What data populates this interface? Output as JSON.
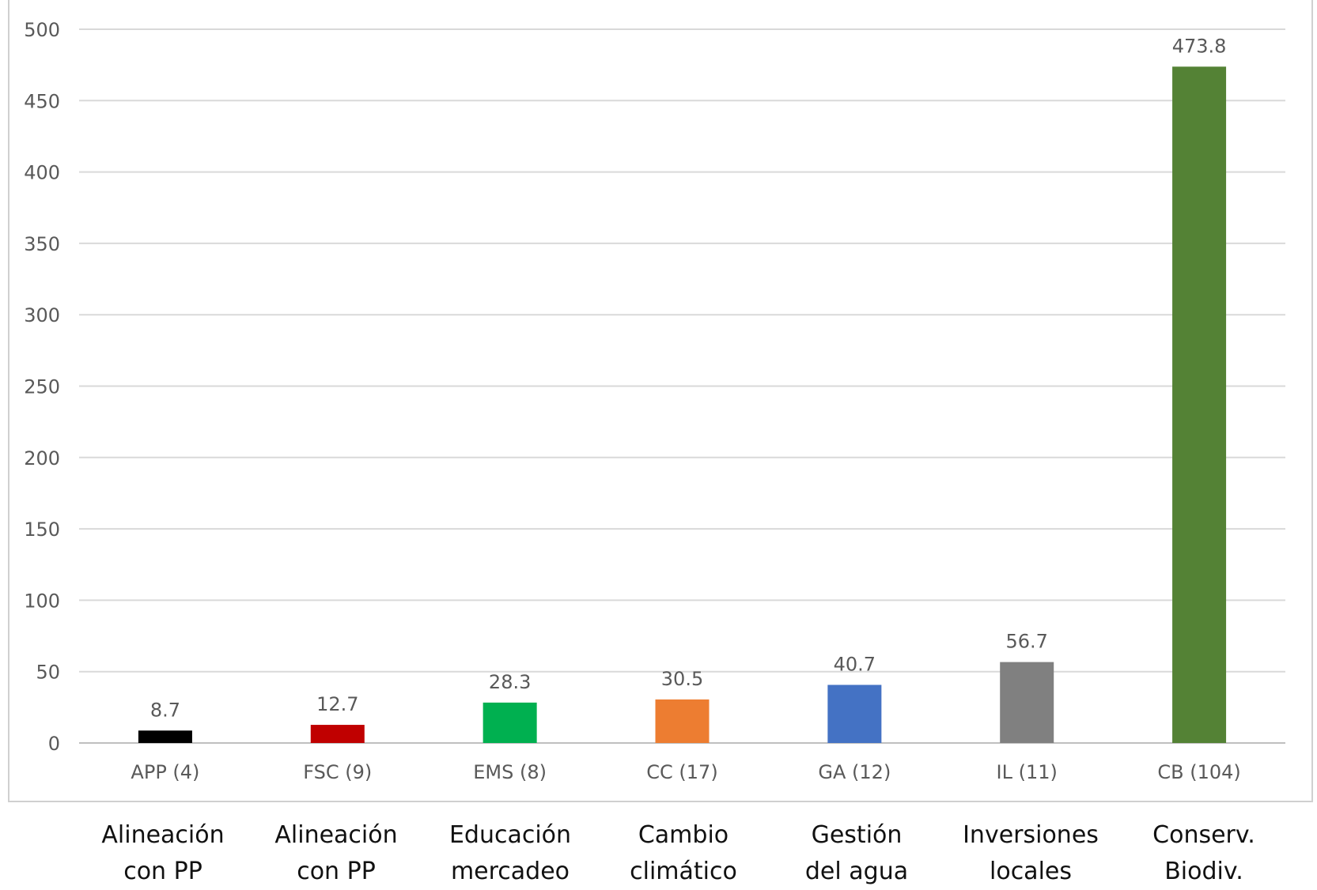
{
  "chart_data": {
    "type": "bar",
    "title": "",
    "xlabel": "",
    "ylabel": "",
    "ylim": [
      0,
      500
    ],
    "yticks": [
      0,
      50,
      100,
      150,
      200,
      250,
      300,
      350,
      400,
      450,
      500
    ],
    "grid": true,
    "categories": [
      "APP (4)",
      "FSC (9)",
      "EMS (8)",
      "CC (17)",
      "GA (12)",
      "IL (11)",
      "CB (104)"
    ],
    "values": [
      8.7,
      12.7,
      28.3,
      30.5,
      40.7,
      56.7,
      473.8
    ],
    "data_labels": [
      "8.7",
      "12.7",
      "28.3",
      "30.5",
      "40.7",
      "56.7",
      "473.8"
    ],
    "bar_colors": [
      "#000000",
      "#c00000",
      "#00b050",
      "#ed7d31",
      "#4472c4",
      "#808080",
      "#548235"
    ],
    "axis_text_color": "#595959",
    "grid_color": "#d9d9d9"
  },
  "category_descriptions": [
    [
      "Alineación",
      "con PP"
    ],
    [
      "Alineación",
      "con PP"
    ],
    [
      "Educación",
      "mercadeo"
    ],
    [
      "Cambio",
      "climático"
    ],
    [
      "Gestión",
      "del agua"
    ],
    [
      "Inversiones",
      "locales"
    ],
    [
      "Conserv.",
      "Biodiv."
    ]
  ]
}
